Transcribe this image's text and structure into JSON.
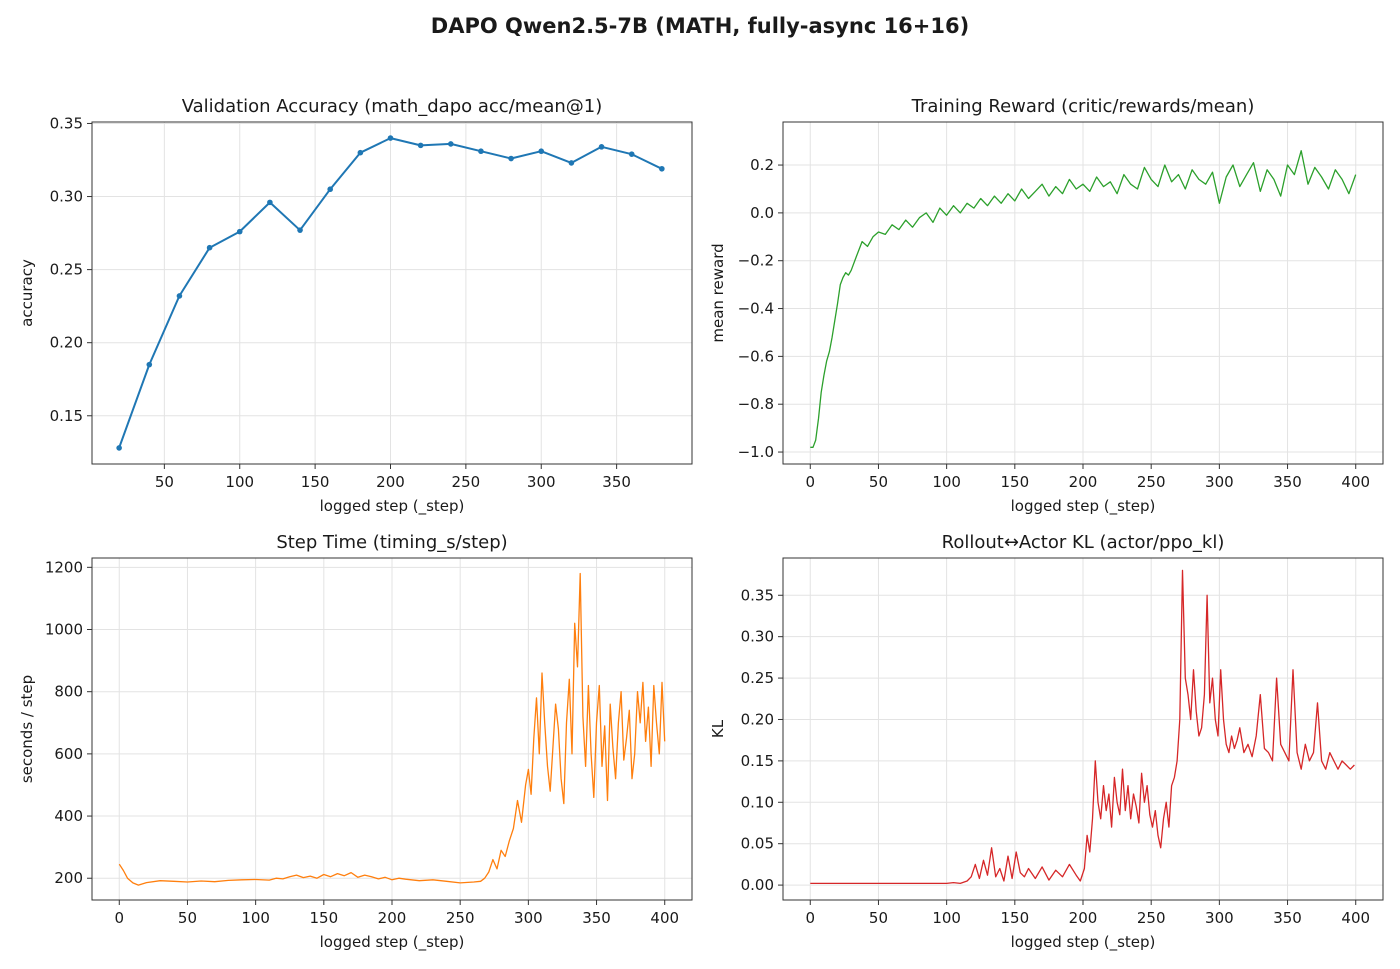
{
  "suptitle": "DAPO Qwen2.5-7B (MATH, fully-async 16+16)",
  "chart_data": [
    {
      "type": "line",
      "title": "Validation Accuracy (math_dapo acc/mean@1)",
      "xlabel": "logged step (_step)",
      "ylabel": "accuracy",
      "color": "#1f77b4",
      "markers": true,
      "grid": true,
      "xlim": [
        2,
        400
      ],
      "ylim": [
        0.117,
        0.351
      ],
      "xticks": [
        50,
        100,
        150,
        200,
        250,
        300,
        350
      ],
      "yticks": [
        0.15,
        0.2,
        0.25,
        0.3,
        0.35
      ],
      "ytick_decimals": 2,
      "series": [
        {
          "x": [
            20,
            40,
            60,
            80,
            100,
            120,
            140,
            160,
            180,
            200,
            220,
            240,
            260,
            280,
            300,
            320,
            340,
            360,
            380
          ],
          "values": [
            0.128,
            0.185,
            0.232,
            0.265,
            0.276,
            0.296,
            0.277,
            0.305,
            0.33,
            0.34,
            0.335,
            0.336,
            0.331,
            0.326,
            0.331,
            0.323,
            0.334,
            0.329,
            0.319
          ]
        }
      ]
    },
    {
      "type": "line",
      "title": "Training Reward (critic/rewards/mean)",
      "xlabel": "logged step (_step)",
      "ylabel": "mean reward",
      "color": "#2ca02c",
      "markers": false,
      "grid": true,
      "xlim": [
        -20,
        420
      ],
      "ylim": [
        -1.05,
        0.38
      ],
      "xticks": [
        0,
        50,
        100,
        150,
        200,
        250,
        300,
        350,
        400
      ],
      "yticks": [
        -1.0,
        -0.8,
        -0.6,
        -0.4,
        -0.2,
        0.0,
        0.2
      ],
      "ytick_decimals": 1,
      "series": [
        {
          "x": [
            0,
            2,
            4,
            6,
            8,
            10,
            12,
            14,
            16,
            18,
            20,
            22,
            24,
            26,
            28,
            30,
            34,
            38,
            42,
            46,
            50,
            55,
            60,
            65,
            70,
            75,
            80,
            85,
            90,
            95,
            100,
            105,
            110,
            115,
            120,
            125,
            130,
            135,
            140,
            145,
            150,
            155,
            160,
            165,
            170,
            175,
            180,
            185,
            190,
            195,
            200,
            205,
            210,
            215,
            220,
            225,
            230,
            235,
            240,
            245,
            250,
            255,
            260,
            265,
            270,
            275,
            280,
            285,
            290,
            295,
            300,
            305,
            310,
            315,
            320,
            325,
            330,
            335,
            340,
            345,
            350,
            355,
            360,
            365,
            370,
            375,
            380,
            385,
            390,
            395,
            400
          ],
          "values": [
            -0.98,
            -0.98,
            -0.95,
            -0.86,
            -0.75,
            -0.68,
            -0.62,
            -0.58,
            -0.52,
            -0.45,
            -0.38,
            -0.3,
            -0.27,
            -0.25,
            -0.26,
            -0.24,
            -0.18,
            -0.12,
            -0.14,
            -0.1,
            -0.08,
            -0.09,
            -0.05,
            -0.07,
            -0.03,
            -0.06,
            -0.02,
            0.0,
            -0.04,
            0.02,
            -0.01,
            0.03,
            0.0,
            0.04,
            0.02,
            0.06,
            0.03,
            0.07,
            0.04,
            0.08,
            0.05,
            0.1,
            0.06,
            0.09,
            0.12,
            0.07,
            0.11,
            0.08,
            0.14,
            0.1,
            0.12,
            0.09,
            0.15,
            0.11,
            0.13,
            0.08,
            0.16,
            0.12,
            0.1,
            0.19,
            0.14,
            0.11,
            0.2,
            0.13,
            0.16,
            0.1,
            0.18,
            0.14,
            0.12,
            0.17,
            0.04,
            0.15,
            0.2,
            0.11,
            0.16,
            0.21,
            0.09,
            0.18,
            0.14,
            0.07,
            0.2,
            0.16,
            0.26,
            0.12,
            0.19,
            0.15,
            0.1,
            0.18,
            0.14,
            0.08,
            0.16
          ]
        }
      ]
    },
    {
      "type": "line",
      "title": "Step Time (timing_s/step)",
      "xlabel": "logged step (_step)",
      "ylabel": "seconds / step",
      "color": "#ff7f0e",
      "markers": false,
      "grid": true,
      "xlim": [
        -20,
        420
      ],
      "ylim": [
        130,
        1230
      ],
      "xticks": [
        0,
        50,
        100,
        150,
        200,
        250,
        300,
        350,
        400
      ],
      "yticks": [
        200,
        400,
        600,
        800,
        1000,
        1200
      ],
      "ytick_decimals": 0,
      "series": [
        {
          "x": [
            0,
            3,
            6,
            10,
            14,
            20,
            30,
            40,
            50,
            60,
            70,
            80,
            90,
            100,
            110,
            115,
            120,
            125,
            130,
            135,
            140,
            145,
            150,
            155,
            160,
            165,
            170,
            175,
            180,
            185,
            190,
            195,
            200,
            205,
            210,
            220,
            230,
            240,
            250,
            260,
            265,
            268,
            271,
            274,
            277,
            280,
            283,
            286,
            289,
            292,
            295,
            298,
            300,
            302,
            304,
            306,
            308,
            310,
            312,
            314,
            316,
            318,
            320,
            322,
            324,
            326,
            328,
            330,
            332,
            334,
            336,
            338,
            340,
            342,
            344,
            346,
            348,
            350,
            352,
            354,
            356,
            358,
            360,
            362,
            364,
            366,
            368,
            370,
            372,
            374,
            376,
            378,
            380,
            382,
            384,
            386,
            388,
            390,
            392,
            394,
            396,
            398,
            400
          ],
          "values": [
            245,
            225,
            200,
            185,
            178,
            186,
            192,
            190,
            188,
            191,
            189,
            193,
            195,
            196,
            194,
            200,
            198,
            205,
            210,
            202,
            207,
            200,
            212,
            205,
            215,
            208,
            218,
            203,
            210,
            205,
            198,
            203,
            195,
            200,
            197,
            192,
            195,
            190,
            185,
            188,
            190,
            200,
            220,
            260,
            230,
            290,
            270,
            320,
            360,
            450,
            380,
            500,
            550,
            470,
            650,
            780,
            600,
            860,
            700,
            560,
            480,
            620,
            760,
            680,
            520,
            440,
            700,
            840,
            600,
            1020,
            880,
            1180,
            720,
            560,
            820,
            600,
            460,
            700,
            820,
            560,
            690,
            450,
            760,
            620,
            520,
            700,
            800,
            580,
            650,
            740,
            520,
            600,
            800,
            700,
            830,
            640,
            750,
            560,
            820,
            700,
            600,
            830,
            640
          ]
        }
      ]
    },
    {
      "type": "line",
      "title": "Rollout↔Actor KL (actor/ppo_kl)",
      "xlabel": "logged step (_step)",
      "ylabel": "KL",
      "color": "#d62728",
      "markers": false,
      "grid": true,
      "xlim": [
        -20,
        420
      ],
      "ylim": [
        -0.018,
        0.395
      ],
      "xticks": [
        0,
        50,
        100,
        150,
        200,
        250,
        300,
        350,
        400
      ],
      "yticks": [
        0.0,
        0.05,
        0.1,
        0.15,
        0.2,
        0.25,
        0.3,
        0.35
      ],
      "ytick_decimals": 2,
      "series": [
        {
          "x": [
            0,
            20,
            40,
            60,
            80,
            100,
            105,
            110,
            115,
            118,
            121,
            124,
            127,
            130,
            133,
            136,
            139,
            142,
            145,
            148,
            151,
            154,
            157,
            160,
            165,
            170,
            175,
            180,
            185,
            190,
            195,
            198,
            201,
            203,
            205,
            207,
            209,
            211,
            213,
            215,
            217,
            219,
            221,
            223,
            225,
            227,
            229,
            231,
            233,
            235,
            237,
            239,
            241,
            243,
            245,
            247,
            249,
            251,
            253,
            255,
            257,
            259,
            261,
            263,
            265,
            267,
            269,
            271,
            273,
            275,
            277,
            279,
            281,
            283,
            285,
            287,
            289,
            291,
            293,
            295,
            297,
            299,
            301,
            303,
            305,
            307,
            309,
            311,
            313,
            315,
            318,
            321,
            324,
            327,
            330,
            333,
            336,
            339,
            342,
            345,
            348,
            351,
            354,
            357,
            360,
            363,
            366,
            369,
            372,
            375,
            378,
            381,
            384,
            387,
            390,
            393,
            396,
            399
          ],
          "values": [
            0.002,
            0.002,
            0.002,
            0.002,
            0.002,
            0.002,
            0.003,
            0.002,
            0.005,
            0.01,
            0.025,
            0.008,
            0.03,
            0.012,
            0.045,
            0.01,
            0.02,
            0.005,
            0.035,
            0.008,
            0.04,
            0.015,
            0.01,
            0.02,
            0.008,
            0.022,
            0.006,
            0.018,
            0.01,
            0.025,
            0.012,
            0.005,
            0.02,
            0.06,
            0.04,
            0.08,
            0.15,
            0.1,
            0.08,
            0.12,
            0.09,
            0.11,
            0.07,
            0.13,
            0.1,
            0.085,
            0.14,
            0.09,
            0.12,
            0.08,
            0.11,
            0.095,
            0.075,
            0.135,
            0.1,
            0.12,
            0.085,
            0.07,
            0.09,
            0.06,
            0.045,
            0.08,
            0.1,
            0.07,
            0.12,
            0.13,
            0.15,
            0.2,
            0.38,
            0.25,
            0.23,
            0.2,
            0.26,
            0.21,
            0.18,
            0.19,
            0.23,
            0.35,
            0.22,
            0.25,
            0.2,
            0.18,
            0.26,
            0.2,
            0.17,
            0.16,
            0.18,
            0.165,
            0.175,
            0.19,
            0.16,
            0.17,
            0.155,
            0.18,
            0.23,
            0.165,
            0.16,
            0.15,
            0.25,
            0.17,
            0.16,
            0.15,
            0.26,
            0.16,
            0.14,
            0.17,
            0.15,
            0.16,
            0.22,
            0.15,
            0.14,
            0.16,
            0.15,
            0.14,
            0.15,
            0.145,
            0.14,
            0.145
          ]
        }
      ]
    }
  ]
}
